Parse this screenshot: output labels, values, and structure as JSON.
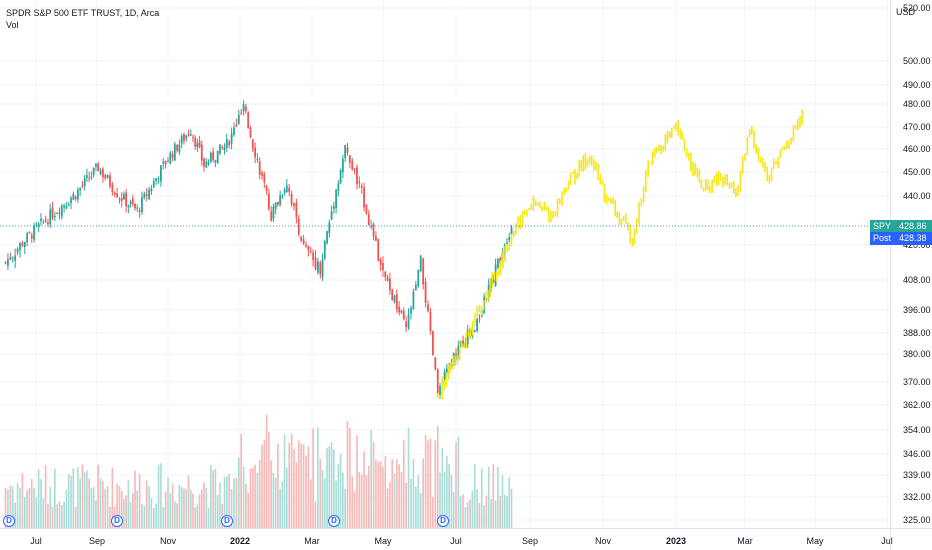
{
  "header": {
    "title": "SPDR S&P 500 ETF TRUST, 1D, Arca",
    "volume_label": "Vol",
    "currency": "USD"
  },
  "price_axis": {
    "ticks": [
      "520.00",
      "500.00",
      "490.00",
      "480.00",
      "470.00",
      "460.00",
      "450.00",
      "440.00",
      "420.00",
      "408.00",
      "396.00",
      "388.00",
      "380.00",
      "370.00",
      "362.00",
      "354.00",
      "346.00",
      "339.00",
      "332.00",
      "325.00"
    ]
  },
  "time_axis": {
    "labels": [
      {
        "text": "Jul",
        "bold": false
      },
      {
        "text": "Sep",
        "bold": false
      },
      {
        "text": "Nov",
        "bold": false
      },
      {
        "text": "2022",
        "bold": true
      },
      {
        "text": "Mar",
        "bold": false
      },
      {
        "text": "May",
        "bold": false
      },
      {
        "text": "Jul",
        "bold": false
      },
      {
        "text": "Sep",
        "bold": false
      },
      {
        "text": "Nov",
        "bold": false
      },
      {
        "text": "2023",
        "bold": true
      },
      {
        "text": "Mar",
        "bold": false
      },
      {
        "text": "May",
        "bold": false
      },
      {
        "text": "Jul",
        "bold": false
      }
    ]
  },
  "last_price": {
    "symbol": "SPY",
    "value": "428.86",
    "post_label": "Post",
    "post_value": "428.38",
    "color": "#26a69a",
    "post_color": "#2962ff"
  },
  "dividend_marker": {
    "label": "D",
    "count": 5
  },
  "colors": {
    "up": "#26a69a",
    "down": "#ef5350",
    "projection": "#f5e51b",
    "price_line": "#4a90d9"
  },
  "chart_data": {
    "type": "candlestick",
    "symbol": "SPY",
    "interval": "1D",
    "y_scale": "log",
    "ylim": [
      325,
      520
    ],
    "x_range": [
      "2021-06",
      "2023-07"
    ],
    "price_path": {
      "dates": [
        "2021-06-01",
        "2021-06-20",
        "2021-07-15",
        "2021-08-10",
        "2021-09-02",
        "2021-09-20",
        "2021-10-05",
        "2021-11-01",
        "2021-11-20",
        "2021-12-01",
        "2021-12-20",
        "2022-01-04",
        "2022-01-27",
        "2022-02-10",
        "2022-02-24",
        "2022-03-08",
        "2022-03-29",
        "2022-04-15",
        "2022-04-29",
        "2022-05-20",
        "2022-06-02",
        "2022-06-16",
        "2022-07-01",
        "2022-07-20",
        "2022-08-05",
        "2022-08-16"
      ],
      "close": [
        414,
        422,
        432,
        441,
        452,
        440,
        434,
        456,
        469,
        453,
        462,
        478,
        432,
        446,
        419,
        412,
        460,
        438,
        412,
        389,
        414,
        366,
        381,
        394,
        414,
        428
      ]
    },
    "projection": {
      "color": "yellow",
      "dates": [
        "2022-06-16",
        "2022-07-20",
        "2022-08-16",
        "2022-09-02",
        "2022-09-20",
        "2022-10-01",
        "2022-10-20",
        "2022-11-04",
        "2022-11-25",
        "2022-12-10",
        "2023-01-01",
        "2023-01-25",
        "2023-02-08",
        "2023-02-25",
        "2023-03-05",
        "2023-03-20",
        "2023-04-05",
        "2023-04-20"
      ],
      "close": [
        366,
        396,
        424,
        437,
        432,
        445,
        457,
        439,
        423,
        456,
        469,
        442,
        447,
        442,
        469,
        447,
        462,
        474
      ]
    },
    "last_close": 428.86,
    "post_close": 428.38
  }
}
